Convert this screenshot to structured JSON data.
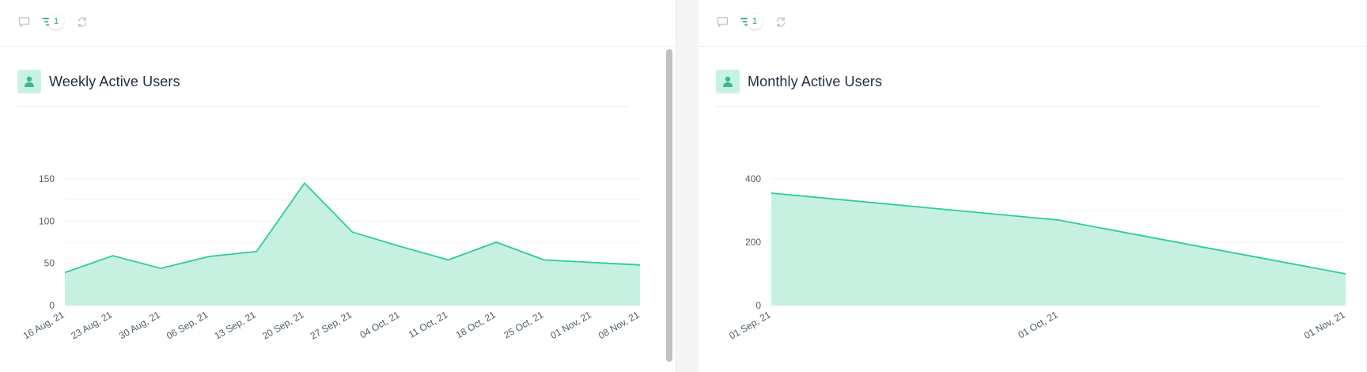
{
  "colors": {
    "line": "#2dcc99",
    "fill": "#c6f1e1",
    "accent": "#1ea776",
    "grid": "#eef1f4",
    "axis_text": "#4f5d6e"
  },
  "toolbar": {
    "comment_icon": "comment-icon",
    "filter_icon": "filter-icon",
    "filter_count": "1",
    "refresh_icon": "refresh-icon"
  },
  "panels": [
    {
      "title": "Weekly Active Users",
      "icon": "user-icon"
    },
    {
      "title": "Monthly Active Users",
      "icon": "user-icon"
    }
  ],
  "chart_data": [
    {
      "type": "area",
      "title": "Weekly Active Users",
      "xlabel": "",
      "ylabel": "",
      "x": [
        "16 Aug, 21",
        "23 Aug, 21",
        "30 Aug, 21",
        "06 Sep, 21",
        "13 Sep, 21",
        "20 Sep, 21",
        "27 Sep, 21",
        "04 Oct, 21",
        "11 Oct, 21",
        "18 Oct, 21",
        "25 Oct, 21",
        "01 Nov, 21",
        "08 Nov, 21"
      ],
      "values": [
        39,
        59,
        44,
        58,
        64,
        145,
        87,
        70,
        54,
        75,
        54,
        51,
        48
      ],
      "ylim": [
        0,
        150
      ],
      "yticks": [
        0,
        50,
        100,
        150
      ],
      "grid": true
    },
    {
      "type": "area",
      "title": "Monthly Active Users",
      "xlabel": "",
      "ylabel": "",
      "x": [
        "01 Sep, 21",
        "01 Oct, 21",
        "01 Nov, 21"
      ],
      "values": [
        355,
        270,
        100
      ],
      "ylim": [
        0,
        400
      ],
      "yticks": [
        0,
        200,
        400
      ],
      "grid": true
    }
  ]
}
